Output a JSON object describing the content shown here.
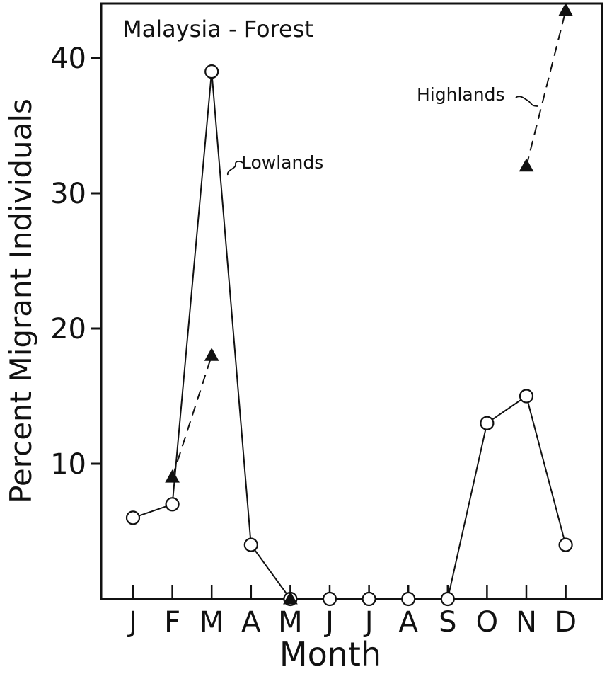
{
  "chart_data": {
    "type": "line",
    "title": "Malaysia - Forest",
    "xlabel": "Month",
    "ylabel": "Percent Migrant Individuals",
    "categories": [
      "J",
      "F",
      "M",
      "A",
      "M",
      "J",
      "J",
      "A",
      "S",
      "O",
      "N",
      "D"
    ],
    "y_ticks": [
      "10",
      "20",
      "30",
      "40"
    ],
    "ylim": [
      0,
      44
    ],
    "grid": false,
    "legend": "none",
    "series": [
      {
        "name": "Lowlands",
        "style": "solid",
        "marker": "open-circle",
        "values": [
          6,
          7,
          39,
          4,
          0,
          0,
          0,
          0,
          0,
          13,
          15,
          4
        ]
      },
      {
        "name": "Highlands",
        "style": "dashed",
        "marker": "filled-triangle",
        "values": [
          null,
          9,
          18,
          null,
          0,
          null,
          null,
          null,
          null,
          null,
          32,
          43.5
        ]
      }
    ],
    "annotations": [
      {
        "text": "Lowlands",
        "series": "Lowlands"
      },
      {
        "text": "Highlands",
        "series": "Highlands"
      }
    ],
    "colors": {
      "ink": "#111111",
      "background": "#ffffff"
    }
  }
}
